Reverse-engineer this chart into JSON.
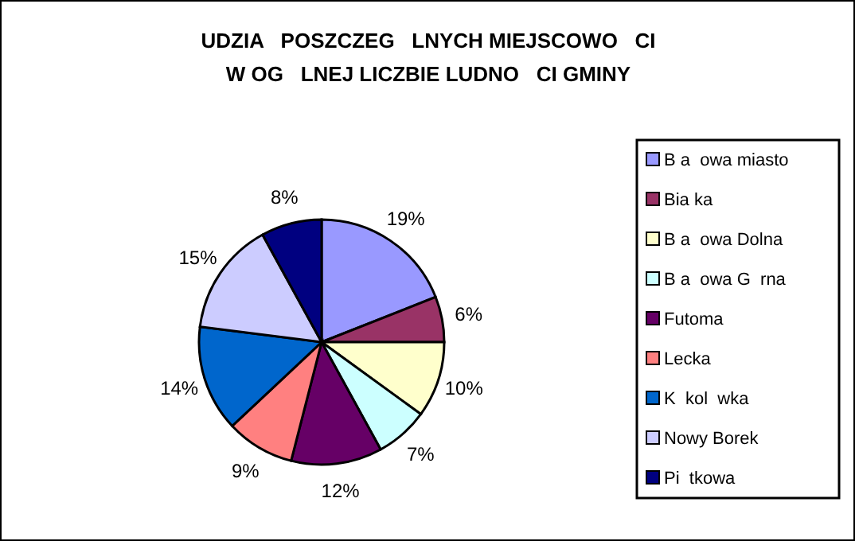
{
  "chart_data": {
    "type": "pie",
    "title": "UDZIA   POSZCZEG   LNYCH MIEJSCOWO   CI\nW OG   LNEJ LICZBIE LUDNO   CI GMINY",
    "categories": [
      "B a  owa miasto",
      "Bia ka",
      "B a  owa Dolna",
      "B a  owa G  rna",
      "Futoma",
      "Lecka",
      "K  kol  wka",
      "Nowy Borek",
      "Pi  tkowa"
    ],
    "values": [
      19,
      6,
      10,
      7,
      12,
      9,
      14,
      15,
      8
    ],
    "colors": [
      "#9999ff",
      "#993366",
      "#ffffcc",
      "#ccffff",
      "#660066",
      "#ff8080",
      "#0066cc",
      "#ccccff",
      "#000080"
    ],
    "value_labels": [
      "19%",
      "6%",
      "10%",
      "7%",
      "12%",
      "9%",
      "14%",
      "15%",
      "8%"
    ],
    "legend": "right"
  }
}
